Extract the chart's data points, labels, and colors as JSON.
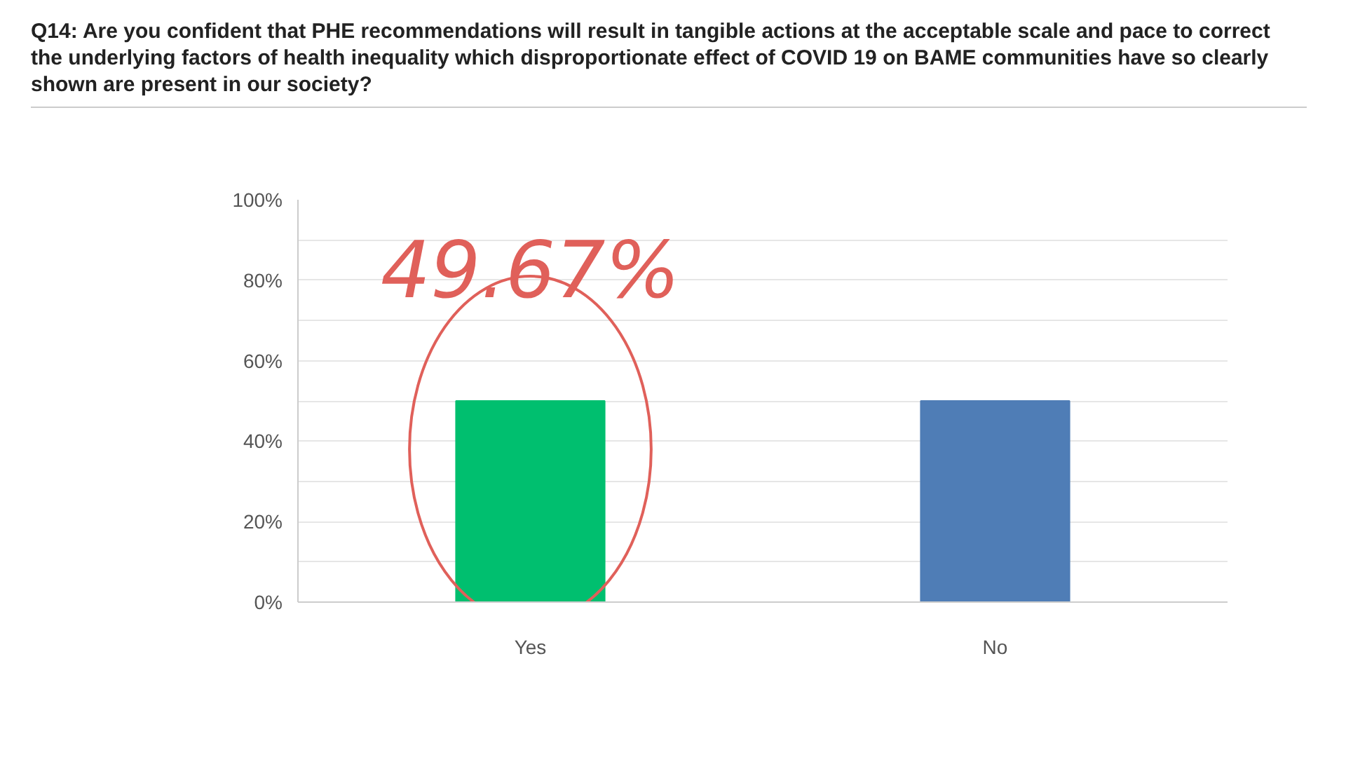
{
  "chart_data": {
    "type": "bar",
    "title": "Q14: Are you confident that PHE recommendations will result in tangible actions at the acceptable scale and pace to correct the underlying factors of health inequality which disproportionate effect of COVID 19  on BAME communities have so clearly shown are present in our society?",
    "categories": [
      "Yes",
      "No"
    ],
    "colors": [
      "#00bf6f",
      "#4f7db6"
    ],
    "values": [
      50,
      50
    ],
    "ylim": [
      0,
      100
    ],
    "yticks": [
      {
        "value": 0,
        "label": "0%"
      },
      {
        "value": 10,
        "label": null
      },
      {
        "value": 20,
        "label": "20%"
      },
      {
        "value": 30,
        "label": null
      },
      {
        "value": 40,
        "label": "40%"
      },
      {
        "value": 50,
        "label": null
      },
      {
        "value": 60,
        "label": "60%"
      },
      {
        "value": 70,
        "label": null
      },
      {
        "value": 80,
        "label": "80%"
      },
      {
        "value": 90,
        "label": null
      },
      {
        "value": 100,
        "label": "100%"
      }
    ],
    "grid": "y",
    "annotations": [
      "49.67%"
    ]
  }
}
